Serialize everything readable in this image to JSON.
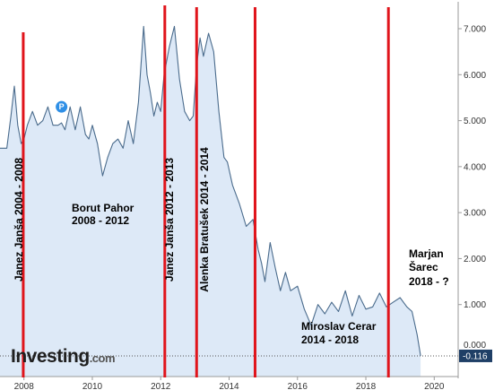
{
  "chart_data": {
    "type": "area",
    "title": "",
    "xlabel": "",
    "ylabel": "",
    "xlim": [
      2007.3,
      2020.7
    ],
    "ylim": [
      -0.116,
      7.5
    ],
    "y_axis_position": "right",
    "grid": false,
    "x_ticks": [
      2008,
      2010,
      2012,
      2014,
      2016,
      2018,
      2020
    ],
    "x_tick_labels": [
      "2008",
      "2010",
      "2012",
      "2014",
      "2016",
      "2018",
      "2020"
    ],
    "y_ticks": [
      1,
      2,
      3,
      4,
      5,
      6,
      7
    ],
    "y_tick_labels": [
      "1.000",
      "2.000",
      "3.000",
      "4.000",
      "5.000",
      "6.000",
      "7.000"
    ],
    "partially_visible_y_tick_label": "0.000",
    "last_value_label": "-0.116",
    "series": [
      {
        "x": [
          2007.3,
          2007.5,
          2007.62,
          2007.72,
          2007.82,
          2007.92,
          2008.0,
          2008.1,
          2008.25,
          2008.4,
          2008.55,
          2008.7,
          2008.85,
          2009.0,
          2009.1,
          2009.2,
          2009.35,
          2009.5,
          2009.65,
          2009.8,
          2009.9,
          2010.0,
          2010.15,
          2010.3,
          2010.45,
          2010.6,
          2010.75,
          2010.9,
          2011.05,
          2011.2,
          2011.35,
          2011.5,
          2011.6,
          2011.7,
          2011.8,
          2011.9,
          2012.0,
          2012.1,
          2012.25,
          2012.4,
          2012.55,
          2012.7,
          2012.85,
          2012.95,
          2013.05,
          2013.15,
          2013.25,
          2013.4,
          2013.55,
          2013.7,
          2013.85,
          2013.95,
          2014.1,
          2014.3,
          2014.5,
          2014.7,
          2014.85,
          2014.95,
          2015.05,
          2015.2,
          2015.35,
          2015.5,
          2015.65,
          2015.8,
          2016.0,
          2016.2,
          2016.4,
          2016.6,
          2016.8,
          2017.0,
          2017.2,
          2017.4,
          2017.6,
          2017.8,
          2018.0,
          2018.2,
          2018.4,
          2018.6,
          2018.8,
          2019.0,
          2019.2,
          2019.35,
          2019.5,
          2019.6
        ],
        "y": [
          4.4,
          4.4,
          5.1,
          5.75,
          4.9,
          4.5,
          4.6,
          4.9,
          5.2,
          4.9,
          5.0,
          5.3,
          4.9,
          4.9,
          4.95,
          4.8,
          5.3,
          4.8,
          5.3,
          4.7,
          4.6,
          4.9,
          4.5,
          3.8,
          4.2,
          4.5,
          4.6,
          4.4,
          5.0,
          4.5,
          5.4,
          7.05,
          6.0,
          5.6,
          5.1,
          5.4,
          5.2,
          6.0,
          6.6,
          7.05,
          5.9,
          5.2,
          5.0,
          5.1,
          6.2,
          6.8,
          6.4,
          6.9,
          6.5,
          5.2,
          4.2,
          4.1,
          3.6,
          3.2,
          2.7,
          2.85,
          2.2,
          1.9,
          1.5,
          2.35,
          1.8,
          1.3,
          1.7,
          1.3,
          1.4,
          0.9,
          0.55,
          1.0,
          0.8,
          1.05,
          0.85,
          1.3,
          0.75,
          1.2,
          0.9,
          0.95,
          1.25,
          0.95,
          1.05,
          1.15,
          0.95,
          0.85,
          0.35,
          -0.116
        ]
      }
    ],
    "colors": {
      "line": "#4a6b8c",
      "fill": "#dde9f7",
      "marker_lines": "#e0141b",
      "last_value_badge": "#1f3f66",
      "p_badge": "#2e8fe6"
    },
    "markers": [
      {
        "x": 2007.98
      },
      {
        "x": 2012.12
      },
      {
        "x": 2013.05
      },
      {
        "x": 2014.76
      },
      {
        "x": 2018.66
      }
    ],
    "annotations": [
      {
        "text": "Janez Janša 2004 - 2008",
        "vertical": true
      },
      {
        "lines": [
          "Borut Pahor",
          "2008 - 2012"
        ]
      },
      {
        "text": "Janez Janša 2012 - 2013",
        "vertical": true
      },
      {
        "text": "Alenka Bratušek 2014 - 2014",
        "vertical": true
      },
      {
        "lines": [
          "Miroslav Cerar",
          "2014 - 2018"
        ]
      },
      {
        "lines": [
          "Marjan",
          "Šarec",
          "2018 - ?"
        ]
      }
    ]
  },
  "badge": {
    "label": "P",
    "x": 2009.1,
    "y": 5.3
  },
  "logo": {
    "main": "Investing",
    "suffix": ".com"
  }
}
